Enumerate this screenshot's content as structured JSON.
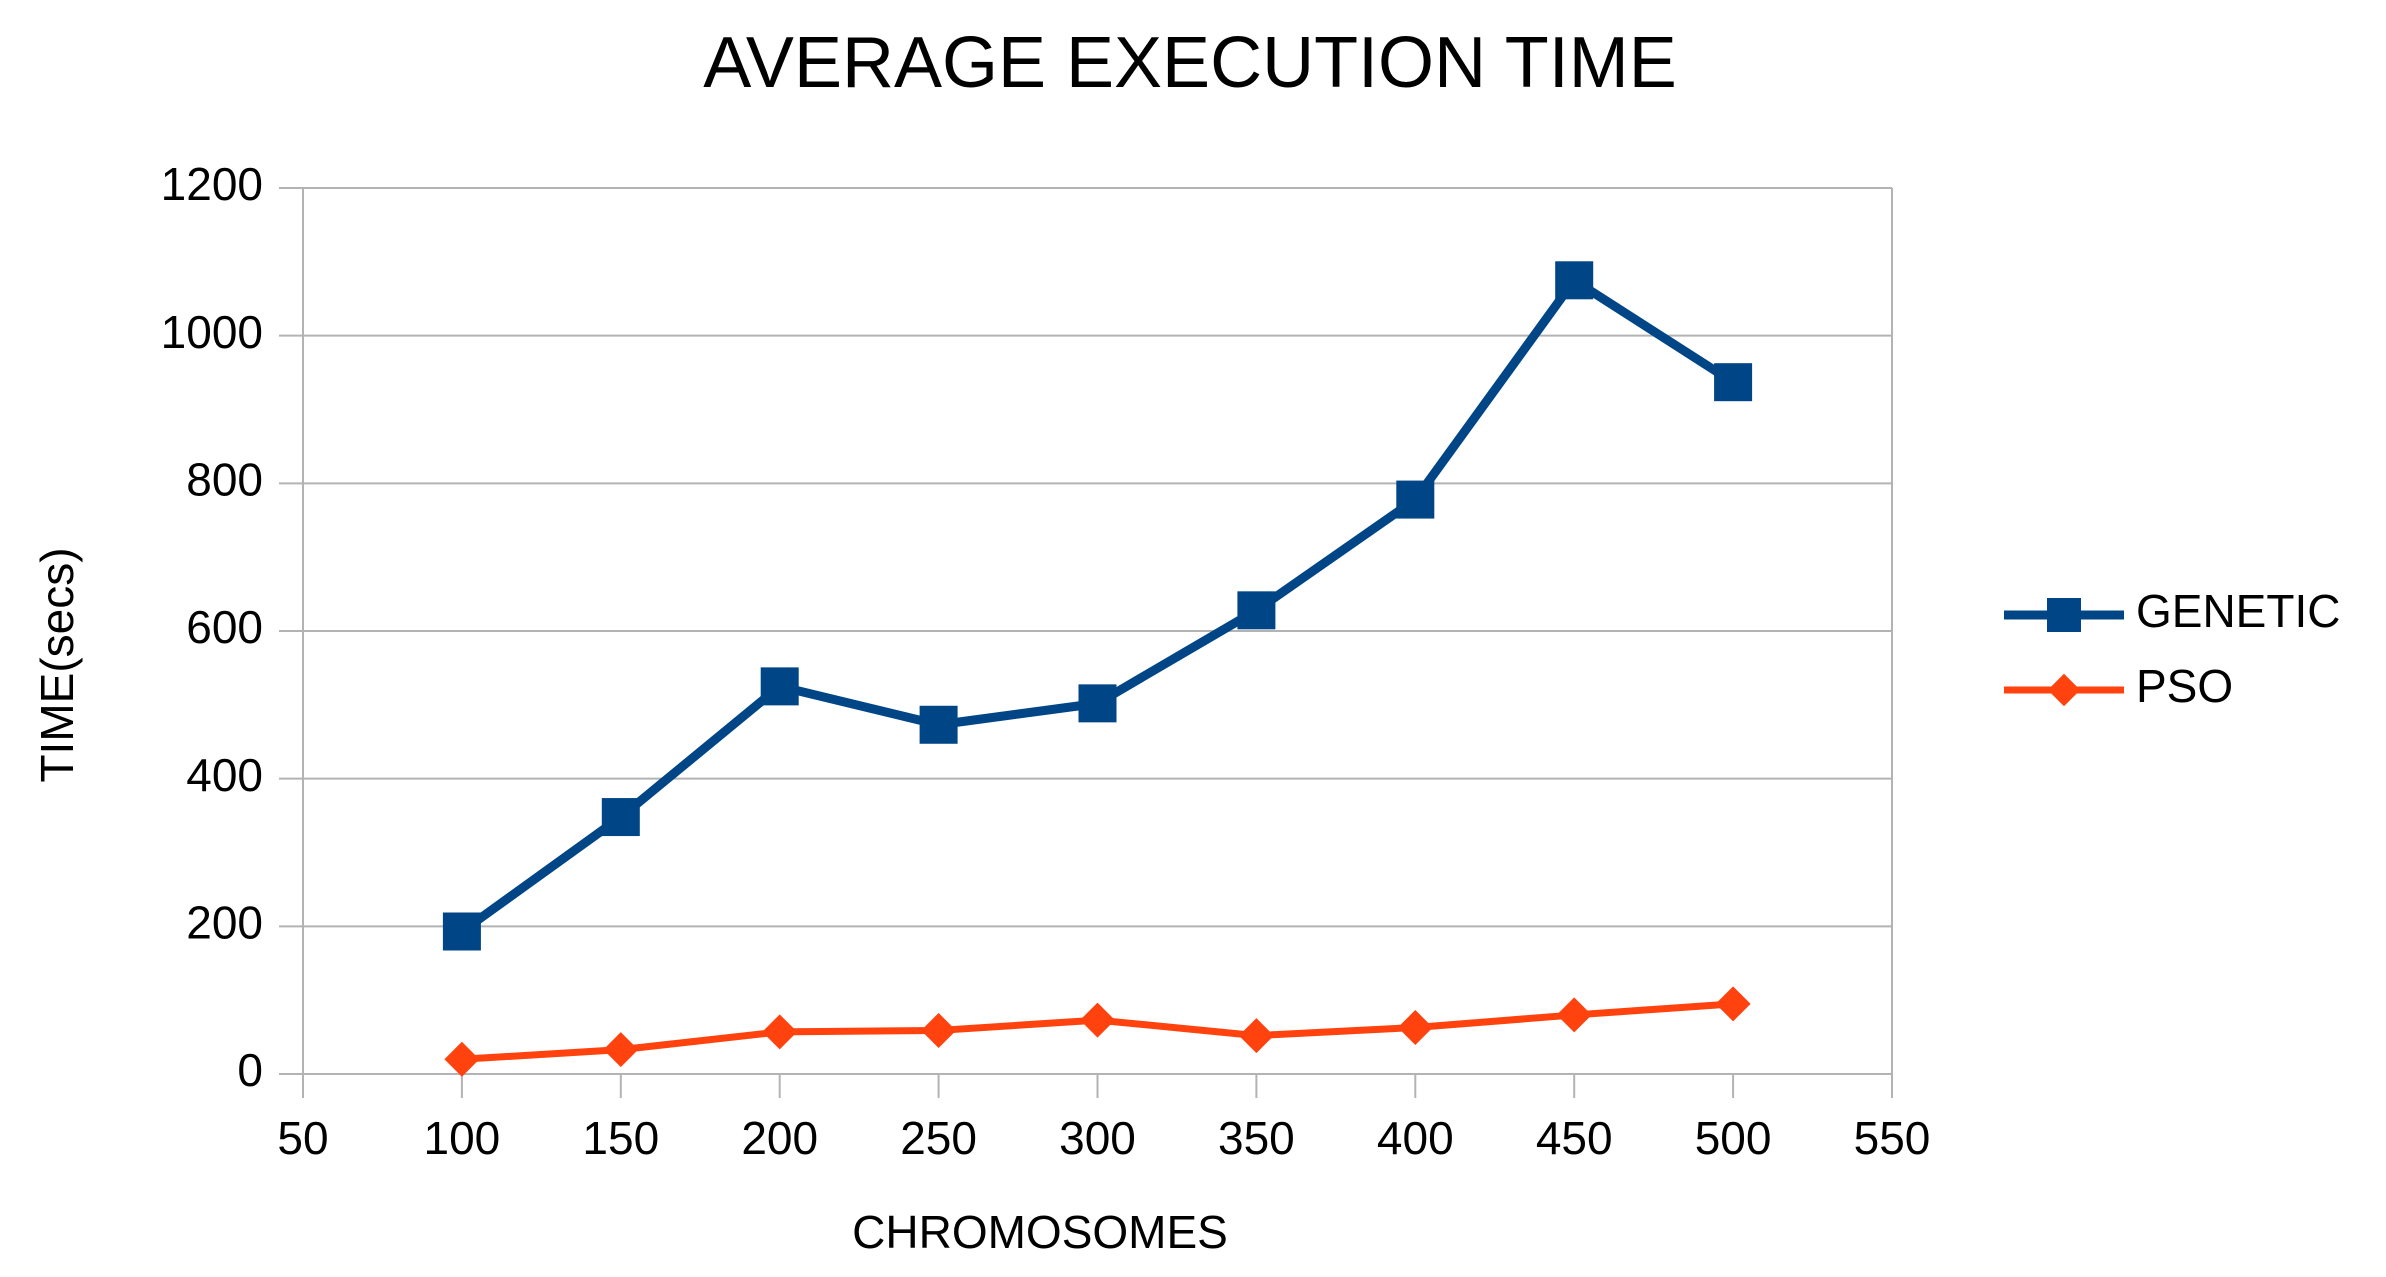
{
  "chart_data": {
    "type": "line",
    "title": "AVERAGE EXECUTION TIME",
    "x_label": "CHROMOSOMES",
    "y_label": "TIME(secs)",
    "x": [
      100,
      150,
      200,
      250,
      300,
      350,
      400,
      450,
      500
    ],
    "series": [
      {
        "name": "GENETIC",
        "color": "#004586",
        "marker": "square",
        "values": [
          193,
          348,
          525,
          473,
          502,
          628,
          778,
          1075,
          937
        ]
      },
      {
        "name": "PSO",
        "color": "#ff420e",
        "marker": "diamond",
        "values": [
          20,
          33,
          57,
          59,
          73,
          52,
          63,
          80,
          95
        ]
      }
    ],
    "xlim": [
      50,
      550
    ],
    "xticks": [
      50,
      100,
      150,
      200,
      250,
      300,
      350,
      400,
      450,
      500,
      550
    ],
    "ylim": [
      0,
      1200
    ],
    "yticks": [
      0,
      200,
      400,
      600,
      800,
      1000,
      1200
    ],
    "grid": true,
    "legend": "right"
  }
}
